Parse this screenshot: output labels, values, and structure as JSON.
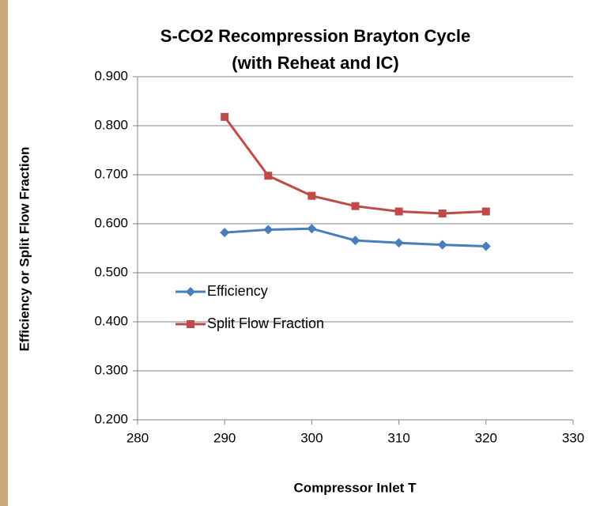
{
  "chart_data": {
    "type": "line",
    "title": [
      "S-CO2 Recompression Brayton Cycle",
      "(with Reheat and IC)"
    ],
    "x_label": "Compressor Inlet T",
    "y_label": "Efficiency or Split Flow Fraction",
    "x": [
      290,
      295,
      300,
      305,
      310,
      315,
      320
    ],
    "series": [
      {
        "name": "Efficiency",
        "color": "#4a7ebb",
        "marker": "diamond",
        "values": [
          0.582,
          0.588,
          0.59,
          0.566,
          0.561,
          0.557,
          0.554
        ]
      },
      {
        "name": "Split Flow Fraction",
        "color": "#be4b48",
        "marker": "square",
        "values": [
          0.818,
          0.698,
          0.657,
          0.636,
          0.625,
          0.621,
          0.625
        ]
      }
    ],
    "xlim": [
      280,
      330
    ],
    "xticks": [
      280,
      290,
      300,
      310,
      320,
      330
    ],
    "ylim": [
      0.2,
      0.9
    ],
    "yticks": [
      {
        "value": 0.2,
        "label": "0.200"
      },
      {
        "value": 0.3,
        "label": "0.300"
      },
      {
        "value": 0.4,
        "label": "0.400"
      },
      {
        "value": 0.5,
        "label": "0.500"
      },
      {
        "value": 0.6,
        "label": "0.600"
      },
      {
        "value": 0.7,
        "label": "0.700"
      },
      {
        "value": 0.8,
        "label": "0.800"
      },
      {
        "value": 0.9,
        "label": "0.900"
      }
    ],
    "grid": true,
    "legend": "left"
  }
}
